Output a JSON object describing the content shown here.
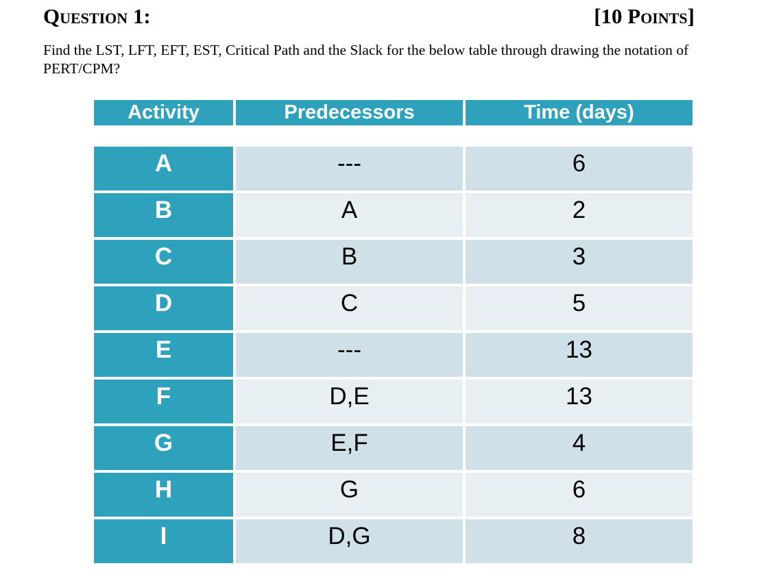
{
  "header": {
    "title": "Question 1:",
    "points": "[10 Points]"
  },
  "question": {
    "text": "Find the LST, LFT, EFT, EST, Critical Path and the Slack for the below table through drawing the notation of PERT/CPM?"
  },
  "table": {
    "columns": [
      "Activity",
      "Predecessors",
      "Time (days)"
    ],
    "rows": [
      {
        "activity": "A",
        "predecessors": "---",
        "time": "6"
      },
      {
        "activity": "B",
        "predecessors": "A",
        "time": "2"
      },
      {
        "activity": "C",
        "predecessors": "B",
        "time": "3"
      },
      {
        "activity": "D",
        "predecessors": "C",
        "time": "5"
      },
      {
        "activity": "E",
        "predecessors": "---",
        "time": "13"
      },
      {
        "activity": "F",
        "predecessors": "D,E",
        "time": "13"
      },
      {
        "activity": "G",
        "predecessors": "E,F",
        "time": "4"
      },
      {
        "activity": "H",
        "predecessors": "G",
        "time": "6"
      },
      {
        "activity": "I",
        "predecessors": "D,G",
        "time": "8"
      }
    ]
  },
  "colors": {
    "table_accent_teal": "#2ea1bc",
    "row_shade_dark": "#cfe0e8",
    "row_shade_light": "#e8eff3",
    "text": "#000000",
    "background": "#ffffff"
  }
}
